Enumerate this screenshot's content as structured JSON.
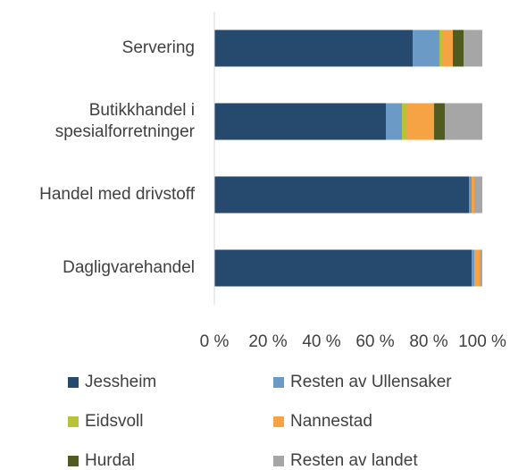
{
  "chart_data": {
    "type": "stacked_barh",
    "categories": [
      "Servering",
      "Butikkhandel i spesialforretninger",
      "Handel med drivstoff",
      "Dagligvarehandel"
    ],
    "series": [
      {
        "name": "Jessheim",
        "color": "#264a6e",
        "values": [
          74,
          64,
          95,
          96
        ]
      },
      {
        "name": "Resten av Ullensaker",
        "color": "#6b9ac6",
        "values": [
          10,
          6,
          1,
          1
        ]
      },
      {
        "name": "Eidsvoll",
        "color": "#b7c43a",
        "values": [
          1,
          2,
          0,
          0
        ]
      },
      {
        "name": "Nannestad",
        "color": "#f5a344",
        "values": [
          4,
          10,
          1,
          2
        ]
      },
      {
        "name": "Hurdal",
        "color": "#4f5b1f",
        "values": [
          4,
          4,
          0,
          0
        ]
      },
      {
        "name": "Resten av landet",
        "color": "#a6a6a6",
        "values": [
          7,
          14,
          3,
          1
        ]
      }
    ],
    "xlim": [
      0,
      100
    ],
    "xticks": [
      {
        "value": 0,
        "label": "0 %"
      },
      {
        "value": 20,
        "label": "20 %"
      },
      {
        "value": 40,
        "label": "40 %"
      },
      {
        "value": 60,
        "label": "60 %"
      },
      {
        "value": 80,
        "label": "80 %"
      },
      {
        "value": 100,
        "label": "100 %"
      }
    ],
    "legend": "bottom"
  }
}
